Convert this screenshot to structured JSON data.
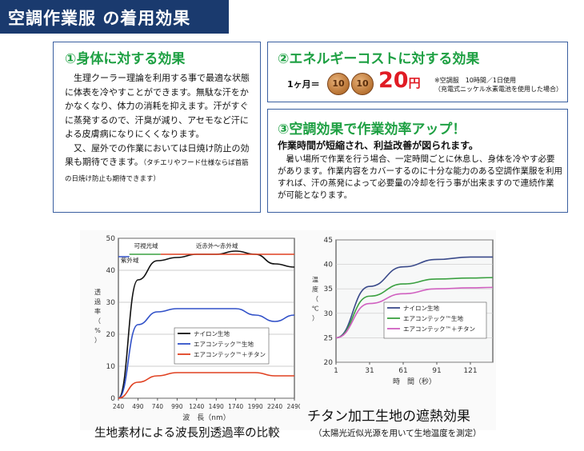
{
  "header": {
    "title": "空調作業服",
    "subtitle": "の着用効果"
  },
  "section1": {
    "heading": "①身体に対する効果",
    "para1": "生理クーラー理論を利用する事で最適な状態に体表を冷やすことができます。無駄な汗をかかなくなり、体力の消耗を抑えます。汗がすぐに蒸発するので、汗臭が減り、アセモなど汗による皮膚病になりにくくなります。",
    "para2": "又、屋外での作業においては日焼け防止の効果も期待できます。",
    "para2_note": "（タチエリやフード仕様ならば首筋の日焼け防止も期待できます）"
  },
  "section2": {
    "heading": "②エネルギーコストに対する効果",
    "equation_label": "1ヶ月＝",
    "coin_value": "10",
    "price_value": "20",
    "price_unit": "円",
    "note_line1": "※空調服　10時間／1日使用",
    "note_line2": "（充電式ニッケル水素電池を使用した場合）"
  },
  "section3": {
    "heading": "③空調効果で作業効率アップ！",
    "lead": "作業時間が短縮され、利益改善が図られます。",
    "body": "暑い場所で作業を行う場合、一定時間ごとに休息し、身体を冷やす必要があります。作業内容をカバーするのに十分な能力のある空調作業服を利用すれば、汗の蒸発によって必要量の冷却を行う事が出来ますので連続作業が可能となります。"
  },
  "captions": {
    "left": "生地素材による波長別透過率の比較",
    "right": "チタン加工生地の遮熱効果",
    "right_sub": "（太陽光近似光源を用いて生地温度を測定）"
  },
  "colors": {
    "header_bg": "#1a3a6e",
    "heading_green": "#1ea043",
    "price_red": "#e01b24",
    "box_border": "#3a5fa0"
  },
  "chart_data": [
    {
      "type": "line",
      "title": "",
      "xlabel": "波　長（nm）",
      "ylabel": "透　過　率（%）",
      "x": [
        240,
        490,
        740,
        990,
        1240,
        1490,
        1740,
        1990,
        2240,
        2490
      ],
      "x_ticks": [
        "240",
        "490",
        "740",
        "990",
        "1240",
        "1490",
        "1740",
        "1990",
        "2240",
        "2490"
      ],
      "y_ticks": [
        "0",
        "10",
        "20",
        "30",
        "40",
        "50"
      ],
      "xlim": [
        240,
        2490
      ],
      "ylim": [
        0,
        50
      ],
      "region_labels": [
        "紫外域",
        "可視光域",
        "近赤外～赤外域"
      ],
      "series": [
        {
          "name": "ナイロン生地",
          "color": "#111111",
          "values": [
            0,
            37,
            43,
            44,
            45,
            45,
            46,
            45,
            42,
            41
          ]
        },
        {
          "name": "エアコンテック™生地",
          "color": "#3050c8",
          "values": [
            0,
            23,
            27,
            28,
            28,
            28,
            28,
            26,
            24,
            26
          ]
        },
        {
          "name": "エアコンテック™＋チタン",
          "color": "#e04020",
          "values": [
            0,
            5,
            7,
            8,
            8,
            8,
            8,
            8,
            7,
            7
          ]
        }
      ],
      "legend": "center-right"
    },
    {
      "type": "line",
      "title": "",
      "xlabel": "時　間（秒）",
      "ylabel": "温　度（℃）",
      "x": [
        1,
        31,
        61,
        91,
        121,
        141
      ],
      "x_ticks": [
        "1",
        "31",
        "61",
        "91",
        "121"
      ],
      "y_ticks": [
        "20",
        "25",
        "30",
        "35",
        "40",
        "45"
      ],
      "xlim": [
        1,
        141
      ],
      "ylim": [
        20,
        45
      ],
      "series": [
        {
          "name": "ナイロン生地",
          "color": "#3a4a8a",
          "values": [
            25,
            35.5,
            39.5,
            41,
            41.5,
            41.5
          ]
        },
        {
          "name": "エアコンテック™生地",
          "color": "#3aa040",
          "values": [
            25,
            33.5,
            36,
            37,
            37.2,
            37.3
          ]
        },
        {
          "name": "エアコンテック™＋チタン",
          "color": "#d060c0",
          "values": [
            25,
            32,
            34,
            35,
            35.2,
            35.3
          ]
        }
      ],
      "legend": "center-right"
    }
  ]
}
